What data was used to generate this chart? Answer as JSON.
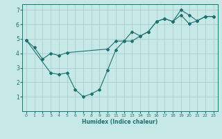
{
  "xlabel": "Humidex (Indice chaleur)",
  "bg_color": "#c6e8e6",
  "grid_color": "#a8cece",
  "line_color": "#1e7070",
  "xlim": [
    -0.5,
    23.5
  ],
  "ylim": [
    0,
    7.4
  ],
  "yticks": [
    1,
    2,
    3,
    4,
    5,
    6,
    7
  ],
  "xticks": [
    0,
    1,
    2,
    3,
    4,
    5,
    6,
    7,
    8,
    9,
    10,
    11,
    12,
    13,
    14,
    15,
    16,
    17,
    18,
    19,
    20,
    21,
    22,
    23
  ],
  "line1_x": [
    0,
    1,
    2,
    3,
    4,
    5,
    10,
    11,
    12,
    13,
    14,
    15,
    16,
    17,
    18,
    19,
    20,
    21,
    22,
    23
  ],
  "line1_y": [
    4.9,
    4.4,
    3.6,
    4.0,
    3.85,
    4.05,
    4.3,
    4.85,
    4.85,
    5.5,
    5.2,
    5.5,
    6.2,
    6.4,
    6.2,
    7.0,
    6.65,
    6.25,
    6.55,
    6.55
  ],
  "line2_x": [
    0,
    3,
    4,
    5,
    6,
    7,
    8,
    9,
    10,
    11,
    12,
    13,
    14,
    15,
    16,
    17,
    18,
    19,
    20,
    21,
    22,
    23
  ],
  "line2_y": [
    4.9,
    2.65,
    2.55,
    2.65,
    1.5,
    1.0,
    1.2,
    1.5,
    2.85,
    4.25,
    4.85,
    4.85,
    5.2,
    5.5,
    6.2,
    6.4,
    6.2,
    6.65,
    6.05,
    6.25,
    6.55,
    6.55
  ]
}
